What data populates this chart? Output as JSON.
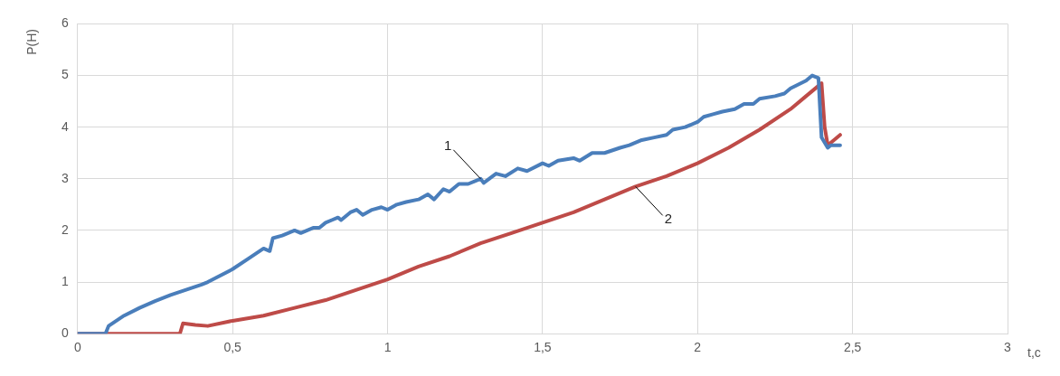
{
  "chart_data": {
    "type": "line",
    "xlabel": "t,c",
    "ylabel": "P(H)",
    "xlim": [
      0,
      3
    ],
    "xticks": [
      0,
      {
        "value": 0.5,
        "label": "0,5"
      },
      1,
      {
        "value": 1.5,
        "label": "1,5"
      },
      2,
      {
        "value": 2.5,
        "label": "2,5"
      },
      3
    ],
    "ylim": [
      0,
      6
    ],
    "yticks": [
      0,
      1,
      2,
      3,
      4,
      5,
      6
    ],
    "grid": true,
    "marker": "none",
    "line_style": "solid",
    "series": [
      {
        "color": "#4a7ebb",
        "x": [
          0,
          0.09,
          0.1,
          0.15,
          0.2,
          0.25,
          0.3,
          0.35,
          0.4,
          0.42,
          0.5,
          0.55,
          0.6,
          0.62,
          0.63,
          0.66,
          0.7,
          0.72,
          0.76,
          0.78,
          0.8,
          0.82,
          0.84,
          0.85,
          0.88,
          0.9,
          0.92,
          0.95,
          0.98,
          1.0,
          1.03,
          1.06,
          1.1,
          1.13,
          1.15,
          1.18,
          1.2,
          1.23,
          1.26,
          1.3,
          1.31,
          1.35,
          1.38,
          1.42,
          1.45,
          1.5,
          1.52,
          1.55,
          1.6,
          1.62,
          1.66,
          1.7,
          1.75,
          1.78,
          1.82,
          1.86,
          1.9,
          1.92,
          1.96,
          2.0,
          2.02,
          2.05,
          2.08,
          2.12,
          2.15,
          2.18,
          2.2,
          2.25,
          2.28,
          2.3,
          2.35,
          2.37,
          2.39,
          2.4,
          2.42,
          2.43,
          2.46
        ],
        "values": [
          0,
          0,
          0.15,
          0.35,
          0.5,
          0.63,
          0.75,
          0.85,
          0.95,
          1.0,
          1.25,
          1.45,
          1.65,
          1.6,
          1.85,
          1.9,
          2.0,
          1.95,
          2.05,
          2.05,
          2.15,
          2.2,
          2.25,
          2.2,
          2.35,
          2.4,
          2.3,
          2.4,
          2.45,
          2.4,
          2.5,
          2.55,
          2.6,
          2.7,
          2.6,
          2.8,
          2.75,
          2.9,
          2.9,
          3.0,
          2.92,
          3.1,
          3.05,
          3.2,
          3.15,
          3.3,
          3.25,
          3.35,
          3.4,
          3.35,
          3.5,
          3.5,
          3.6,
          3.65,
          3.75,
          3.8,
          3.85,
          3.95,
          4.0,
          4.1,
          4.2,
          4.25,
          4.3,
          4.35,
          4.45,
          4.45,
          4.55,
          4.6,
          4.65,
          4.75,
          4.9,
          5.0,
          4.95,
          3.8,
          3.6,
          3.65,
          3.65
        ]
      },
      {
        "color": "#be4b48",
        "x": [
          0,
          0.33,
          0.34,
          0.38,
          0.42,
          0.5,
          0.6,
          0.7,
          0.8,
          0.9,
          1.0,
          1.1,
          1.2,
          1.3,
          1.4,
          1.5,
          1.6,
          1.7,
          1.8,
          1.9,
          2.0,
          2.1,
          2.2,
          2.3,
          2.35,
          2.4,
          2.41,
          2.42,
          2.44,
          2.46
        ],
        "values": [
          0,
          0,
          0.2,
          0.17,
          0.15,
          0.25,
          0.35,
          0.5,
          0.65,
          0.85,
          1.05,
          1.3,
          1.5,
          1.75,
          1.95,
          2.15,
          2.35,
          2.6,
          2.85,
          3.05,
          3.3,
          3.6,
          3.95,
          4.35,
          4.6,
          4.85,
          4.0,
          3.65,
          3.75,
          3.85
        ]
      }
    ],
    "annotations": [
      {
        "text": "1",
        "x": 1.3,
        "y": 3.0
      },
      {
        "text": "2",
        "x": 1.8,
        "y": 2.85
      }
    ]
  }
}
